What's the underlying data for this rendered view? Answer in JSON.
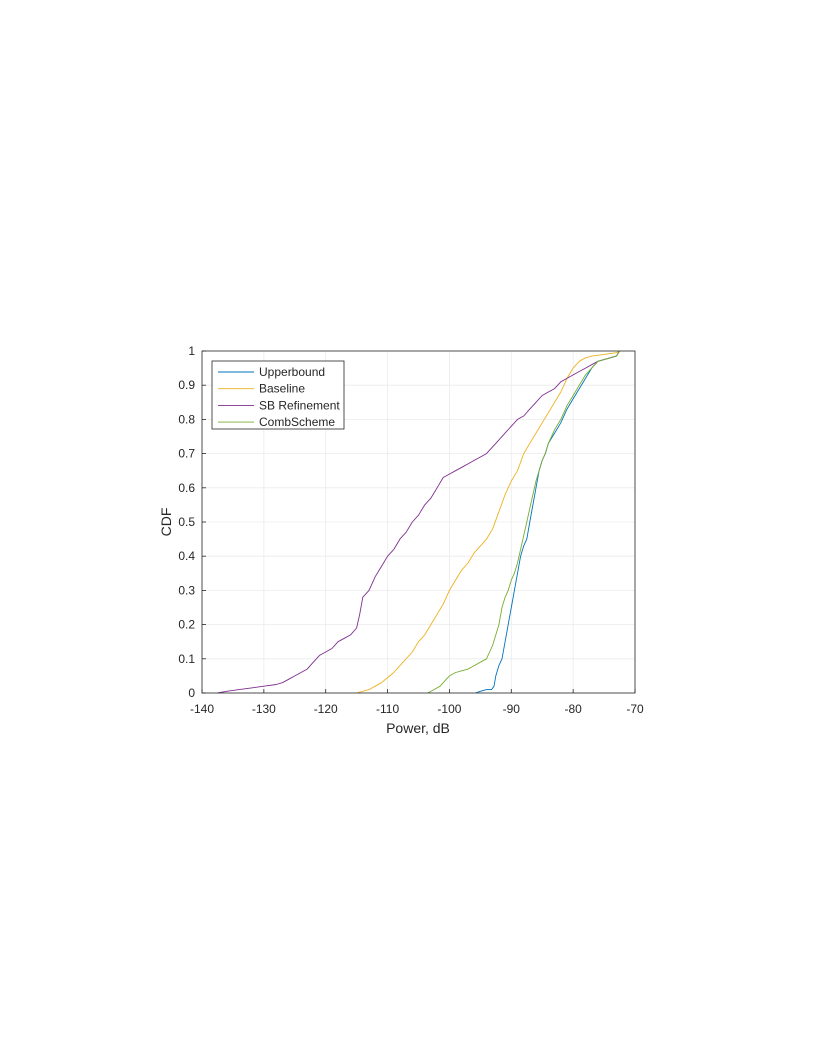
{
  "chart_data": {
    "type": "line",
    "title": "",
    "xlabel": "Power, dB",
    "ylabel": "CDF",
    "xlim": [
      -140,
      -70
    ],
    "ylim": [
      0,
      1
    ],
    "xticks": [
      "-140",
      "-130",
      "-120",
      "-110",
      "-100",
      "-90",
      "-80",
      "-70"
    ],
    "yticks": [
      "0",
      "0.1",
      "0.2",
      "0.3",
      "0.4",
      "0.5",
      "0.6",
      "0.7",
      "0.8",
      "0.9",
      "1"
    ],
    "grid": true,
    "legend_position": "top-left",
    "series": [
      {
        "name": "Upperbound",
        "color": "#0072BD",
        "points": [
          [
            -95.8,
            0.0
          ],
          [
            -95.0,
            0.005
          ],
          [
            -94.0,
            0.01
          ],
          [
            -93.2,
            0.01
          ],
          [
            -92.8,
            0.02
          ],
          [
            -92.5,
            0.05
          ],
          [
            -92.0,
            0.08
          ],
          [
            -91.5,
            0.1
          ],
          [
            -91.0,
            0.15
          ],
          [
            -90.5,
            0.2
          ],
          [
            -90.0,
            0.25
          ],
          [
            -89.5,
            0.3
          ],
          [
            -89.0,
            0.35
          ],
          [
            -88.5,
            0.4
          ],
          [
            -88.0,
            0.43
          ],
          [
            -87.5,
            0.45
          ],
          [
            -87.0,
            0.5
          ],
          [
            -86.5,
            0.55
          ],
          [
            -86.0,
            0.6
          ],
          [
            -85.5,
            0.65
          ],
          [
            -85.0,
            0.68
          ],
          [
            -84.5,
            0.7
          ],
          [
            -84.0,
            0.73
          ],
          [
            -83.0,
            0.76
          ],
          [
            -82.0,
            0.79
          ],
          [
            -81.0,
            0.83
          ],
          [
            -80.0,
            0.86
          ],
          [
            -79.0,
            0.89
          ],
          [
            -78.0,
            0.92
          ],
          [
            -77.0,
            0.95
          ],
          [
            -76.0,
            0.97
          ],
          [
            -75.0,
            0.975
          ],
          [
            -74.0,
            0.98
          ],
          [
            -73.0,
            0.985
          ],
          [
            -72.5,
            1.0
          ]
        ]
      },
      {
        "name": "Baseline",
        "color": "#EDB120",
        "points": [
          [
            -115.0,
            0.0
          ],
          [
            -114.0,
            0.005
          ],
          [
            -113.0,
            0.01
          ],
          [
            -112.0,
            0.02
          ],
          [
            -111.0,
            0.03
          ],
          [
            -110.0,
            0.045
          ],
          [
            -109.0,
            0.06
          ],
          [
            -108.0,
            0.08
          ],
          [
            -107.0,
            0.1
          ],
          [
            -106.0,
            0.12
          ],
          [
            -105.0,
            0.15
          ],
          [
            -104.0,
            0.17
          ],
          [
            -103.0,
            0.2
          ],
          [
            -102.0,
            0.23
          ],
          [
            -101.0,
            0.26
          ],
          [
            -100.0,
            0.3
          ],
          [
            -99.0,
            0.33
          ],
          [
            -98.0,
            0.36
          ],
          [
            -97.0,
            0.38
          ],
          [
            -96.0,
            0.41
          ],
          [
            -95.0,
            0.43
          ],
          [
            -94.0,
            0.45
          ],
          [
            -93.0,
            0.48
          ],
          [
            -92.0,
            0.53
          ],
          [
            -91.0,
            0.58
          ],
          [
            -90.0,
            0.62
          ],
          [
            -89.0,
            0.65
          ],
          [
            -88.0,
            0.7
          ],
          [
            -87.0,
            0.73
          ],
          [
            -86.0,
            0.76
          ],
          [
            -85.0,
            0.79
          ],
          [
            -84.0,
            0.82
          ],
          [
            -83.0,
            0.85
          ],
          [
            -82.0,
            0.88
          ],
          [
            -81.0,
            0.92
          ],
          [
            -80.0,
            0.95
          ],
          [
            -79.0,
            0.97
          ],
          [
            -78.0,
            0.98
          ],
          [
            -77.0,
            0.985
          ],
          [
            -75.0,
            0.99
          ],
          [
            -73.0,
            0.995
          ],
          [
            -72.5,
            1.0
          ]
        ]
      },
      {
        "name": "SB Refinement",
        "color": "#7E2F8E",
        "points": [
          [
            -137.5,
            0.0
          ],
          [
            -136.0,
            0.005
          ],
          [
            -134.0,
            0.01
          ],
          [
            -132.0,
            0.015
          ],
          [
            -130.0,
            0.02
          ],
          [
            -128.0,
            0.025
          ],
          [
            -127.0,
            0.03
          ],
          [
            -126.0,
            0.04
          ],
          [
            -125.0,
            0.05
          ],
          [
            -124.0,
            0.06
          ],
          [
            -123.0,
            0.07
          ],
          [
            -122.0,
            0.09
          ],
          [
            -121.0,
            0.11
          ],
          [
            -120.0,
            0.12
          ],
          [
            -119.0,
            0.13
          ],
          [
            -118.0,
            0.15
          ],
          [
            -117.0,
            0.16
          ],
          [
            -116.0,
            0.17
          ],
          [
            -115.0,
            0.19
          ],
          [
            -114.5,
            0.23
          ],
          [
            -114.0,
            0.28
          ],
          [
            -113.0,
            0.3
          ],
          [
            -112.0,
            0.34
          ],
          [
            -111.0,
            0.37
          ],
          [
            -110.0,
            0.4
          ],
          [
            -109.0,
            0.42
          ],
          [
            -108.0,
            0.45
          ],
          [
            -107.0,
            0.47
          ],
          [
            -106.0,
            0.5
          ],
          [
            -105.0,
            0.52
          ],
          [
            -104.0,
            0.55
          ],
          [
            -103.0,
            0.57
          ],
          [
            -102.0,
            0.6
          ],
          [
            -101.0,
            0.63
          ],
          [
            -100.0,
            0.64
          ],
          [
            -99.0,
            0.65
          ],
          [
            -98.0,
            0.66
          ],
          [
            -97.0,
            0.67
          ],
          [
            -96.0,
            0.68
          ],
          [
            -95.0,
            0.69
          ],
          [
            -94.0,
            0.7
          ],
          [
            -93.0,
            0.72
          ],
          [
            -92.0,
            0.74
          ],
          [
            -91.0,
            0.76
          ],
          [
            -90.0,
            0.78
          ],
          [
            -89.0,
            0.8
          ],
          [
            -88.0,
            0.81
          ],
          [
            -87.0,
            0.83
          ],
          [
            -86.0,
            0.85
          ],
          [
            -85.0,
            0.87
          ],
          [
            -84.0,
            0.88
          ],
          [
            -83.0,
            0.89
          ],
          [
            -82.0,
            0.91
          ],
          [
            -81.0,
            0.92
          ],
          [
            -80.0,
            0.93
          ],
          [
            -79.0,
            0.94
          ],
          [
            -78.0,
            0.95
          ],
          [
            -77.0,
            0.96
          ],
          [
            -76.0,
            0.97
          ],
          [
            -75.0,
            0.975
          ],
          [
            -74.0,
            0.98
          ],
          [
            -73.0,
            0.985
          ],
          [
            -72.5,
            1.0
          ]
        ]
      },
      {
        "name": "CombScheme",
        "color": "#77AC30",
        "points": [
          [
            -103.5,
            0.0
          ],
          [
            -102.5,
            0.01
          ],
          [
            -101.5,
            0.02
          ],
          [
            -101.0,
            0.03
          ],
          [
            -100.5,
            0.04
          ],
          [
            -100.0,
            0.05
          ],
          [
            -99.0,
            0.06
          ],
          [
            -98.0,
            0.065
          ],
          [
            -97.0,
            0.07
          ],
          [
            -96.0,
            0.08
          ],
          [
            -95.0,
            0.09
          ],
          [
            -94.0,
            0.1
          ],
          [
            -93.5,
            0.12
          ],
          [
            -93.0,
            0.14
          ],
          [
            -92.5,
            0.17
          ],
          [
            -92.0,
            0.2
          ],
          [
            -91.5,
            0.25
          ],
          [
            -91.0,
            0.28
          ],
          [
            -90.5,
            0.3
          ],
          [
            -90.0,
            0.33
          ],
          [
            -89.5,
            0.35
          ],
          [
            -89.0,
            0.38
          ],
          [
            -88.5,
            0.42
          ],
          [
            -88.0,
            0.46
          ],
          [
            -87.5,
            0.5
          ],
          [
            -87.0,
            0.54
          ],
          [
            -86.5,
            0.58
          ],
          [
            -86.0,
            0.62
          ],
          [
            -85.5,
            0.65
          ],
          [
            -85.0,
            0.68
          ],
          [
            -84.5,
            0.7
          ],
          [
            -84.0,
            0.73
          ],
          [
            -83.0,
            0.77
          ],
          [
            -82.0,
            0.8
          ],
          [
            -81.0,
            0.84
          ],
          [
            -80.0,
            0.87
          ],
          [
            -79.0,
            0.9
          ],
          [
            -78.0,
            0.93
          ],
          [
            -77.0,
            0.95
          ],
          [
            -76.0,
            0.97
          ],
          [
            -75.0,
            0.975
          ],
          [
            -74.0,
            0.98
          ],
          [
            -73.0,
            0.985
          ],
          [
            -72.5,
            1.0
          ]
        ]
      }
    ]
  }
}
